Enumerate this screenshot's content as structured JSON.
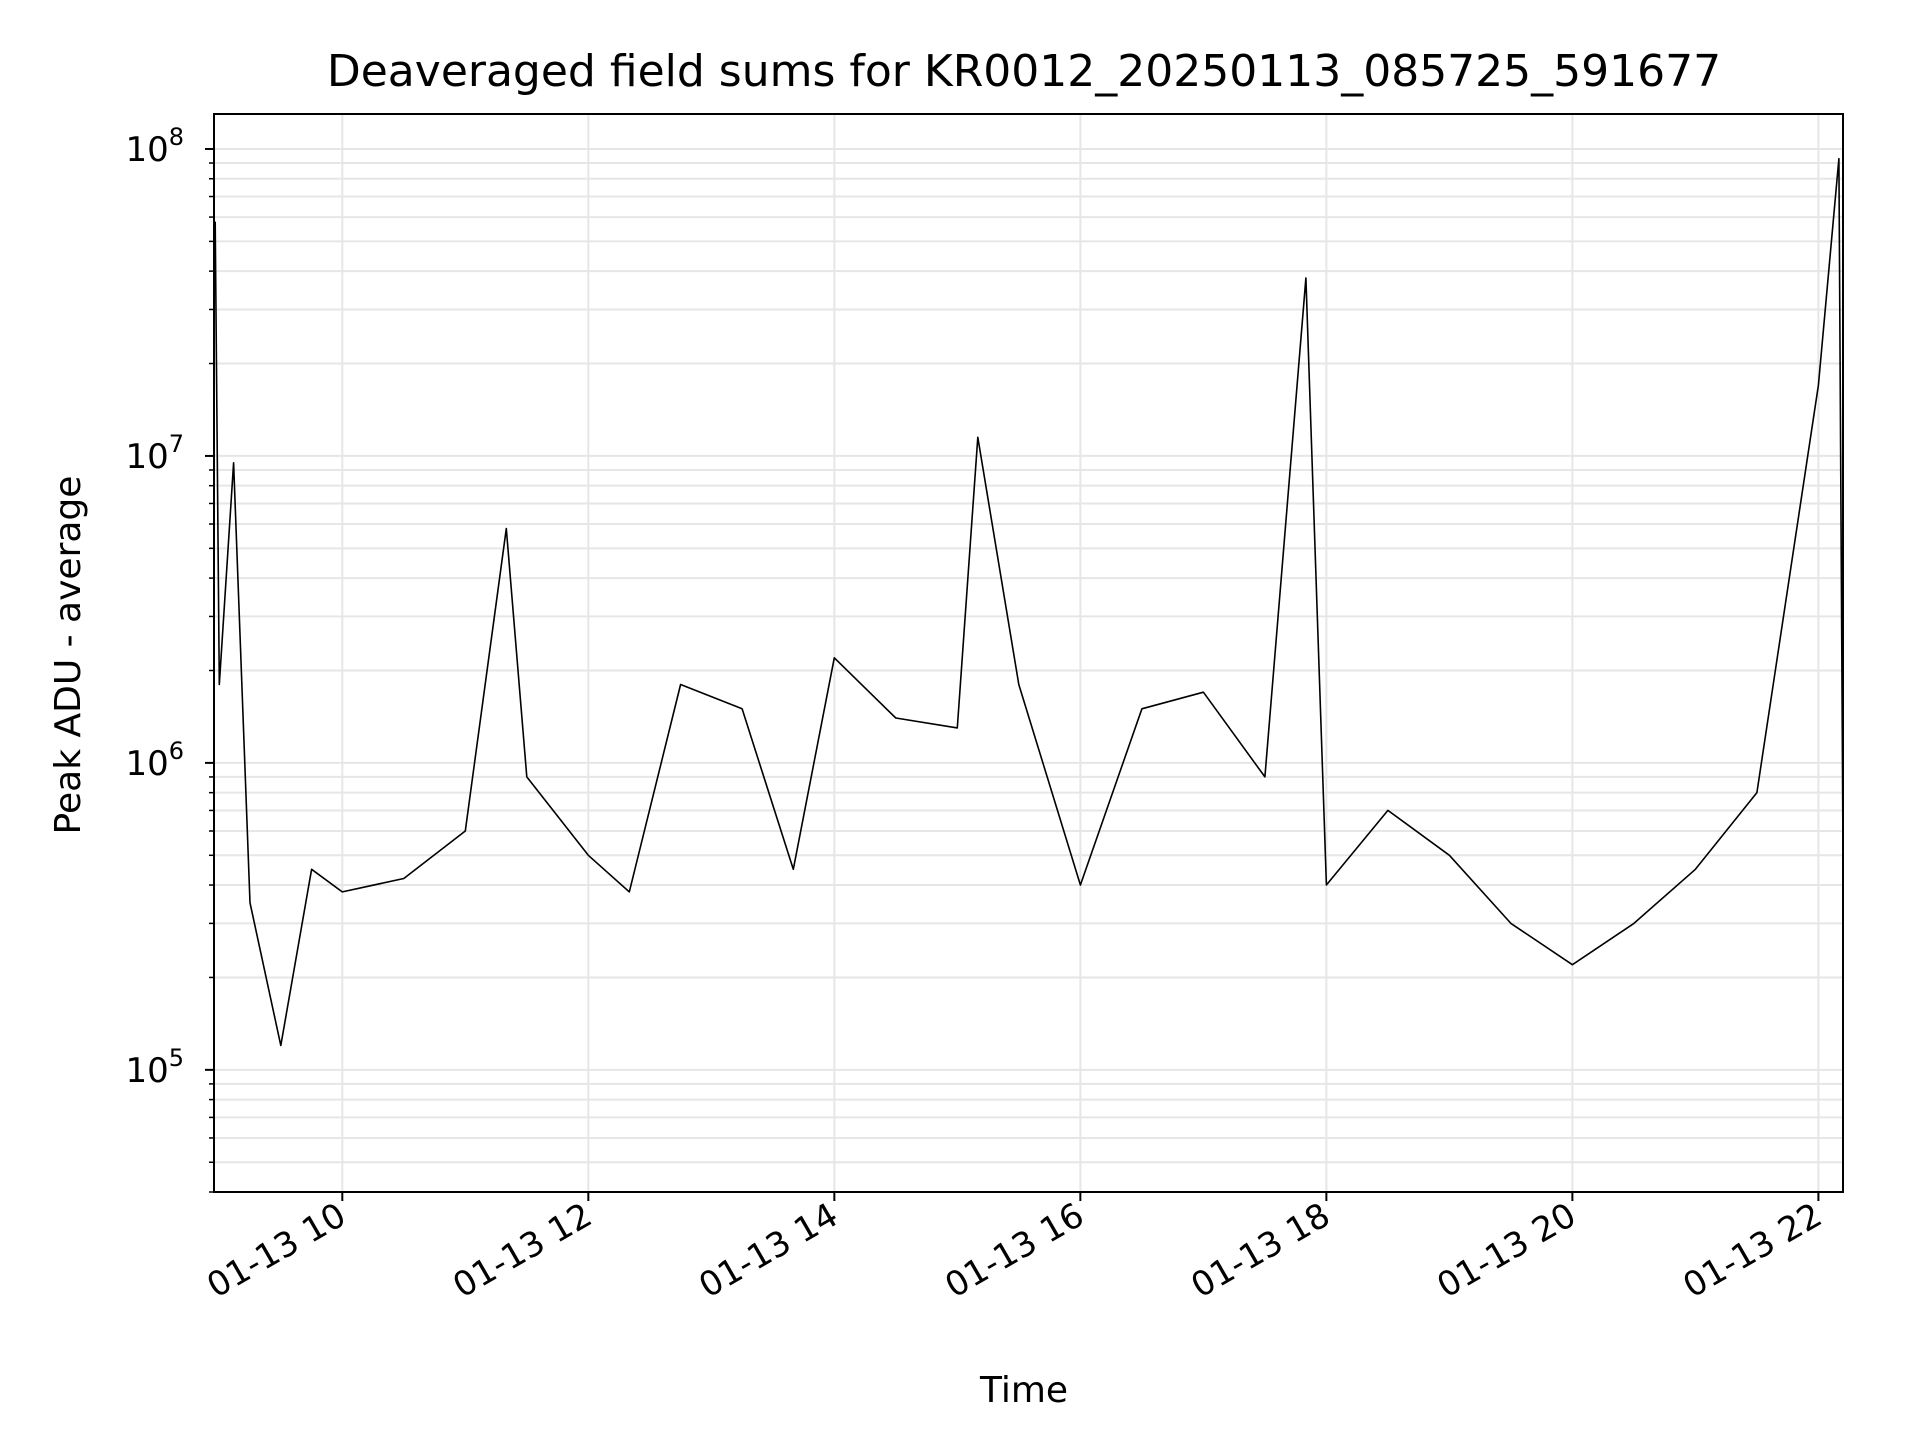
{
  "chart_data": {
    "type": "line",
    "title": "Deaveraged field sums for KR0012_20250113_085725_591677",
    "xlabel": "Time",
    "ylabel": "Peak ADU - average",
    "x_range": [
      "2025-01-13T08:57:25",
      "2025-01-13T22:12:00"
    ],
    "y_scale": "log",
    "y_range": [
      40000,
      130000000
    ],
    "grid": true,
    "line_color": "#000000",
    "x_ticks": [
      {
        "label": "01-13 10",
        "time": "2025-01-13T10:00"
      },
      {
        "label": "01-13 12",
        "time": "2025-01-13T12:00"
      },
      {
        "label": "01-13 14",
        "time": "2025-01-13T14:00"
      },
      {
        "label": "01-13 16",
        "time": "2025-01-13T16:00"
      },
      {
        "label": "01-13 18",
        "time": "2025-01-13T18:00"
      },
      {
        "label": "01-13 20",
        "time": "2025-01-13T20:00"
      },
      {
        "label": "01-13 22",
        "time": "2025-01-13T22:00"
      }
    ],
    "y_ticks": [
      {
        "base": "10",
        "exp": "5",
        "value": 100000
      },
      {
        "base": "10",
        "exp": "6",
        "value": 1000000
      },
      {
        "base": "10",
        "exp": "7",
        "value": 10000000
      },
      {
        "base": "10",
        "exp": "8",
        "value": 100000000
      }
    ],
    "series": [
      {
        "values": [
          [
            "2025-01-13T08:58",
            58000000
          ],
          [
            "2025-01-13T09:00",
            1800000
          ],
          [
            "2025-01-13T09:07",
            9500000
          ],
          [
            "2025-01-13T09:15",
            350000
          ],
          [
            "2025-01-13T09:30",
            120000
          ],
          [
            "2025-01-13T09:45",
            450000
          ],
          [
            "2025-01-13T10:00",
            380000
          ],
          [
            "2025-01-13T10:30",
            420000
          ],
          [
            "2025-01-13T11:00",
            600000
          ],
          [
            "2025-01-13T11:20",
            5800000
          ],
          [
            "2025-01-13T11:30",
            900000
          ],
          [
            "2025-01-13T12:00",
            500000
          ],
          [
            "2025-01-13T12:20",
            380000
          ],
          [
            "2025-01-13T12:45",
            1800000
          ],
          [
            "2025-01-13T13:15",
            1500000
          ],
          [
            "2025-01-13T13:40",
            450000
          ],
          [
            "2025-01-13T14:00",
            2200000
          ],
          [
            "2025-01-13T14:30",
            1400000
          ],
          [
            "2025-01-13T15:00",
            1300000
          ],
          [
            "2025-01-13T15:10",
            11500000
          ],
          [
            "2025-01-13T15:30",
            1800000
          ],
          [
            "2025-01-13T16:00",
            400000
          ],
          [
            "2025-01-13T16:30",
            1500000
          ],
          [
            "2025-01-13T17:00",
            1700000
          ],
          [
            "2025-01-13T17:30",
            900000
          ],
          [
            "2025-01-13T17:50",
            38000000
          ],
          [
            "2025-01-13T18:00",
            400000
          ],
          [
            "2025-01-13T18:30",
            700000
          ],
          [
            "2025-01-13T19:00",
            500000
          ],
          [
            "2025-01-13T19:30",
            300000
          ],
          [
            "2025-01-13T20:00",
            220000
          ],
          [
            "2025-01-13T20:30",
            300000
          ],
          [
            "2025-01-13T21:00",
            450000
          ],
          [
            "2025-01-13T21:30",
            800000
          ],
          [
            "2025-01-13T22:00",
            17000000
          ],
          [
            "2025-01-13T22:10",
            93000000
          ],
          [
            "2025-01-13T22:12",
            500000
          ]
        ]
      }
    ]
  }
}
